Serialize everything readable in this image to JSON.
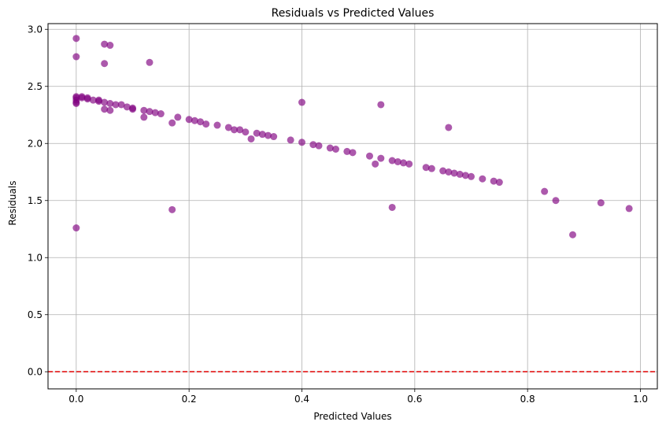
{
  "chart_data": {
    "type": "scatter",
    "title": "Residuals vs Predicted Values",
    "xlabel": "Predicted Values",
    "ylabel": "Residuals",
    "xlim": [
      -0.05,
      1.03
    ],
    "ylim": [
      -0.15,
      3.05
    ],
    "xticks": [
      0.0,
      0.2,
      0.4,
      0.6,
      0.8,
      1.0
    ],
    "xtick_labels": [
      "0.0",
      "0.2",
      "0.4",
      "0.6",
      "0.8",
      "1.0"
    ],
    "yticks": [
      0.0,
      0.5,
      1.0,
      1.5,
      2.0,
      2.5,
      3.0
    ],
    "ytick_labels": [
      "0.0",
      "0.5",
      "1.0",
      "1.5",
      "2.0",
      "2.5",
      "3.0"
    ],
    "grid": true,
    "reference_line": {
      "y": 0.0,
      "style": "dashed",
      "color": "#e00000"
    },
    "series": [
      {
        "color": "#800080",
        "alpha": 0.65,
        "points": [
          [
            0.0,
            2.92
          ],
          [
            0.0,
            2.76
          ],
          [
            0.0,
            2.41
          ],
          [
            0.0,
            2.4
          ],
          [
            0.0,
            2.38
          ],
          [
            0.0,
            2.36
          ],
          [
            0.0,
            2.35
          ],
          [
            0.0,
            1.26
          ],
          [
            0.01,
            2.41
          ],
          [
            0.01,
            2.4
          ],
          [
            0.02,
            2.4
          ],
          [
            0.02,
            2.39
          ],
          [
            0.03,
            2.38
          ],
          [
            0.04,
            2.38
          ],
          [
            0.04,
            2.37
          ],
          [
            0.05,
            2.87
          ],
          [
            0.05,
            2.7
          ],
          [
            0.05,
            2.36
          ],
          [
            0.05,
            2.3
          ],
          [
            0.06,
            2.86
          ],
          [
            0.06,
            2.35
          ],
          [
            0.06,
            2.29
          ],
          [
            0.07,
            2.34
          ],
          [
            0.08,
            2.34
          ],
          [
            0.09,
            2.32
          ],
          [
            0.1,
            2.31
          ],
          [
            0.1,
            2.3
          ],
          [
            0.12,
            2.29
          ],
          [
            0.12,
            2.23
          ],
          [
            0.13,
            2.71
          ],
          [
            0.13,
            2.28
          ],
          [
            0.14,
            2.27
          ],
          [
            0.15,
            2.26
          ],
          [
            0.17,
            2.18
          ],
          [
            0.17,
            1.42
          ],
          [
            0.18,
            2.23
          ],
          [
            0.2,
            2.21
          ],
          [
            0.21,
            2.2
          ],
          [
            0.22,
            2.19
          ],
          [
            0.23,
            2.17
          ],
          [
            0.25,
            2.16
          ],
          [
            0.27,
            2.14
          ],
          [
            0.28,
            2.12
          ],
          [
            0.29,
            2.12
          ],
          [
            0.3,
            2.1
          ],
          [
            0.31,
            2.04
          ],
          [
            0.32,
            2.09
          ],
          [
            0.33,
            2.08
          ],
          [
            0.34,
            2.07
          ],
          [
            0.35,
            2.06
          ],
          [
            0.38,
            2.03
          ],
          [
            0.4,
            2.36
          ],
          [
            0.4,
            2.01
          ],
          [
            0.42,
            1.99
          ],
          [
            0.43,
            1.98
          ],
          [
            0.45,
            1.96
          ],
          [
            0.46,
            1.95
          ],
          [
            0.48,
            1.93
          ],
          [
            0.49,
            1.92
          ],
          [
            0.52,
            1.89
          ],
          [
            0.53,
            1.82
          ],
          [
            0.54,
            2.34
          ],
          [
            0.54,
            1.87
          ],
          [
            0.56,
            1.85
          ],
          [
            0.56,
            1.44
          ],
          [
            0.57,
            1.84
          ],
          [
            0.58,
            1.83
          ],
          [
            0.59,
            1.82
          ],
          [
            0.62,
            1.79
          ],
          [
            0.63,
            1.78
          ],
          [
            0.65,
            1.76
          ],
          [
            0.66,
            2.14
          ],
          [
            0.66,
            1.75
          ],
          [
            0.67,
            1.74
          ],
          [
            0.68,
            1.73
          ],
          [
            0.69,
            1.72
          ],
          [
            0.7,
            1.71
          ],
          [
            0.72,
            1.69
          ],
          [
            0.74,
            1.67
          ],
          [
            0.75,
            1.66
          ],
          [
            0.83,
            1.58
          ],
          [
            0.85,
            1.5
          ],
          [
            0.88,
            1.2
          ],
          [
            0.93,
            1.48
          ],
          [
            0.98,
            1.43
          ]
        ]
      }
    ]
  }
}
